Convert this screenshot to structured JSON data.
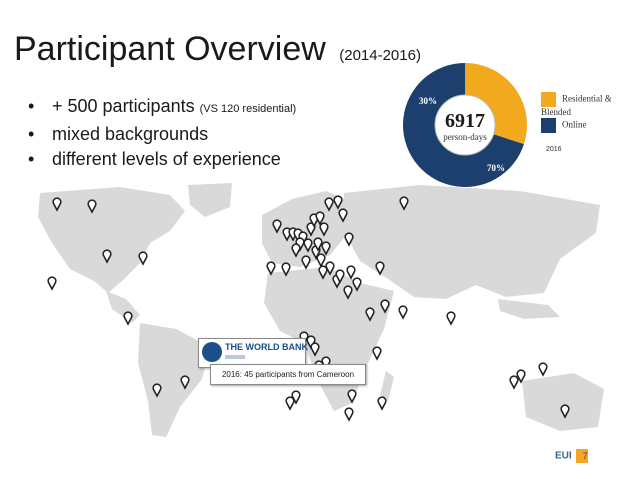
{
  "header": {
    "title": "Participant Overview",
    "subtitle": "(2014-2016)"
  },
  "bullets": {
    "b1": "+ 500 participants",
    "b1_note": "(VS 120 residential)",
    "b2": "mixed backgrounds",
    "b3": "different levels of experience"
  },
  "donut": {
    "total": "6917",
    "unit": "person-days",
    "slices": [
      {
        "label": "Residential & Blended",
        "percent_text": "30%",
        "value": 30,
        "color": "#f2a91e"
      },
      {
        "label": "Online",
        "percent_text": "70%",
        "value": 70,
        "color": "#1c3f6e"
      }
    ],
    "year": "2016"
  },
  "map": {
    "land_color": "#d9d9d9",
    "marker_color": "#222222",
    "callout_logo_text": "THE WORLD BANK",
    "callout_text": "2016: 45 participants from Cameroon"
  },
  "footer": {
    "logo": "EUI",
    "page_number": "7",
    "accent": "#f5a623"
  }
}
